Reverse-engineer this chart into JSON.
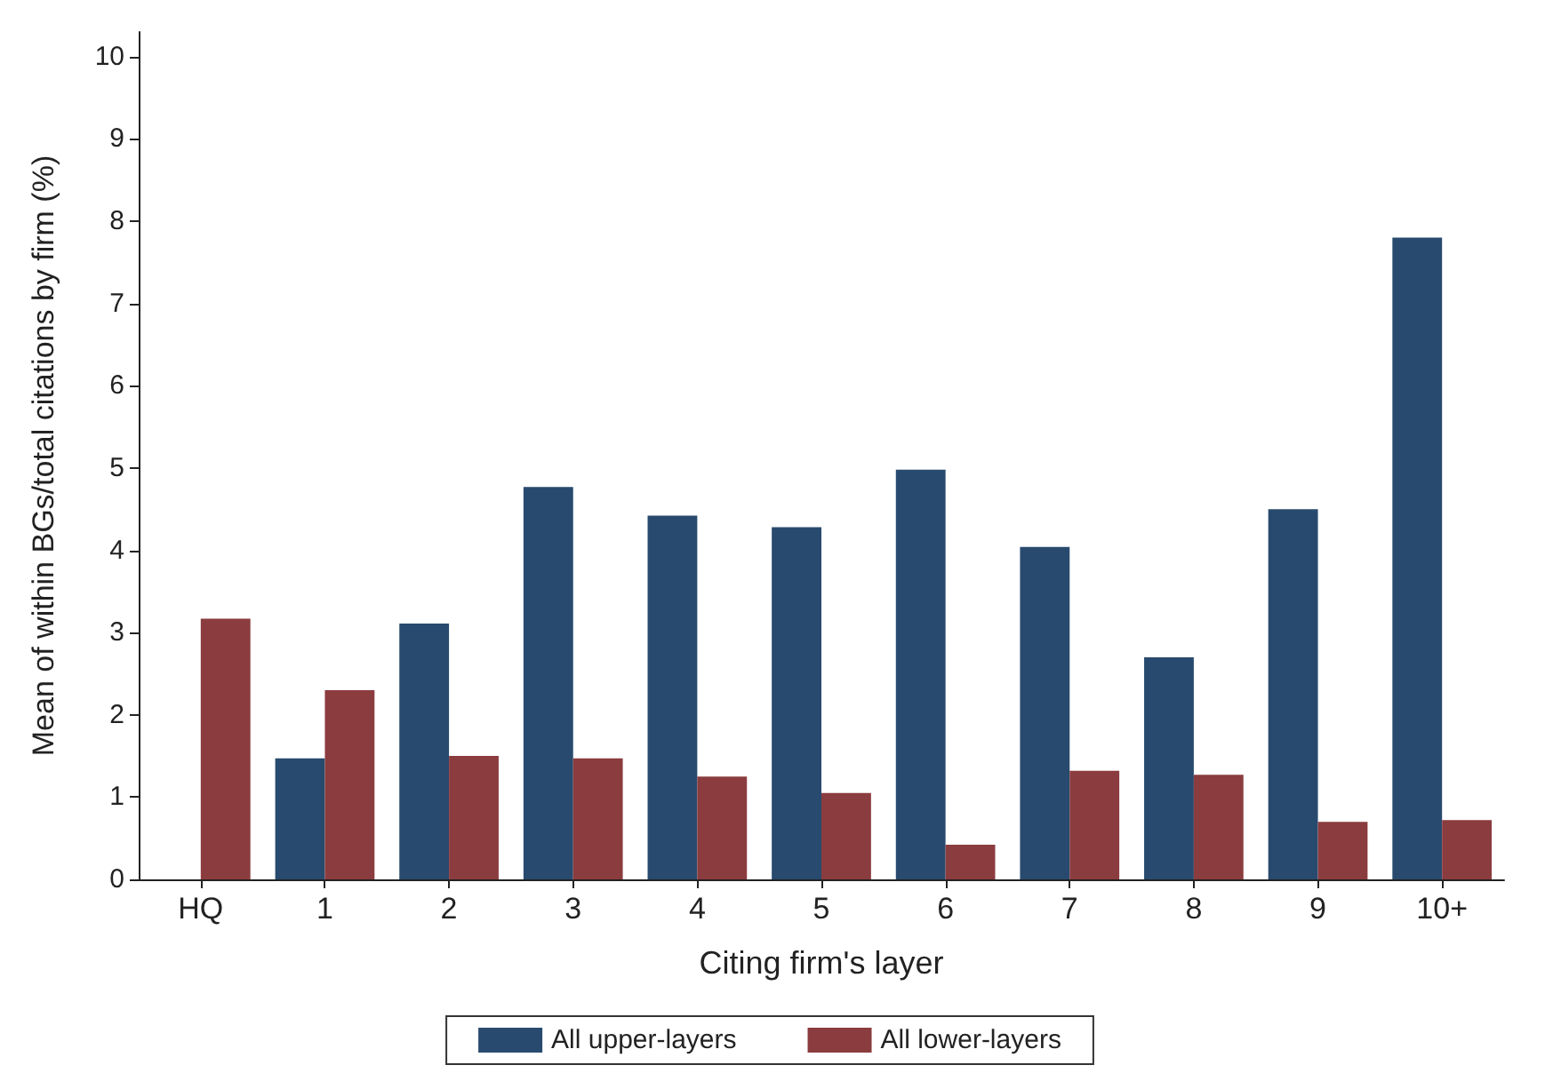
{
  "chart_data": {
    "type": "bar",
    "xlabel": "Citing firm's layer",
    "ylabel": "Mean of within BGs/total citations by firm (%)",
    "categories": [
      "HQ",
      "1",
      "2",
      "3",
      "4",
      "5",
      "6",
      "7",
      "8",
      "9",
      "10+"
    ],
    "series": [
      {
        "name": "All upper-layers",
        "color": "#284a6e",
        "values": [
          null,
          1.47,
          3.11,
          4.77,
          4.42,
          4.28,
          4.98,
          4.04,
          2.7,
          4.5,
          7.8
        ]
      },
      {
        "name": "All lower-layers",
        "color": "#8b3c3f",
        "values": [
          3.17,
          2.3,
          1.5,
          1.47,
          1.25,
          1.05,
          0.42,
          1.32,
          1.27,
          0.7,
          0.72
        ]
      }
    ],
    "ylim": [
      0,
      10.3
    ],
    "yticks": [
      0,
      1,
      2,
      3,
      4,
      5,
      6,
      7,
      8,
      9,
      10
    ],
    "grid": false,
    "legend": "bottom"
  }
}
